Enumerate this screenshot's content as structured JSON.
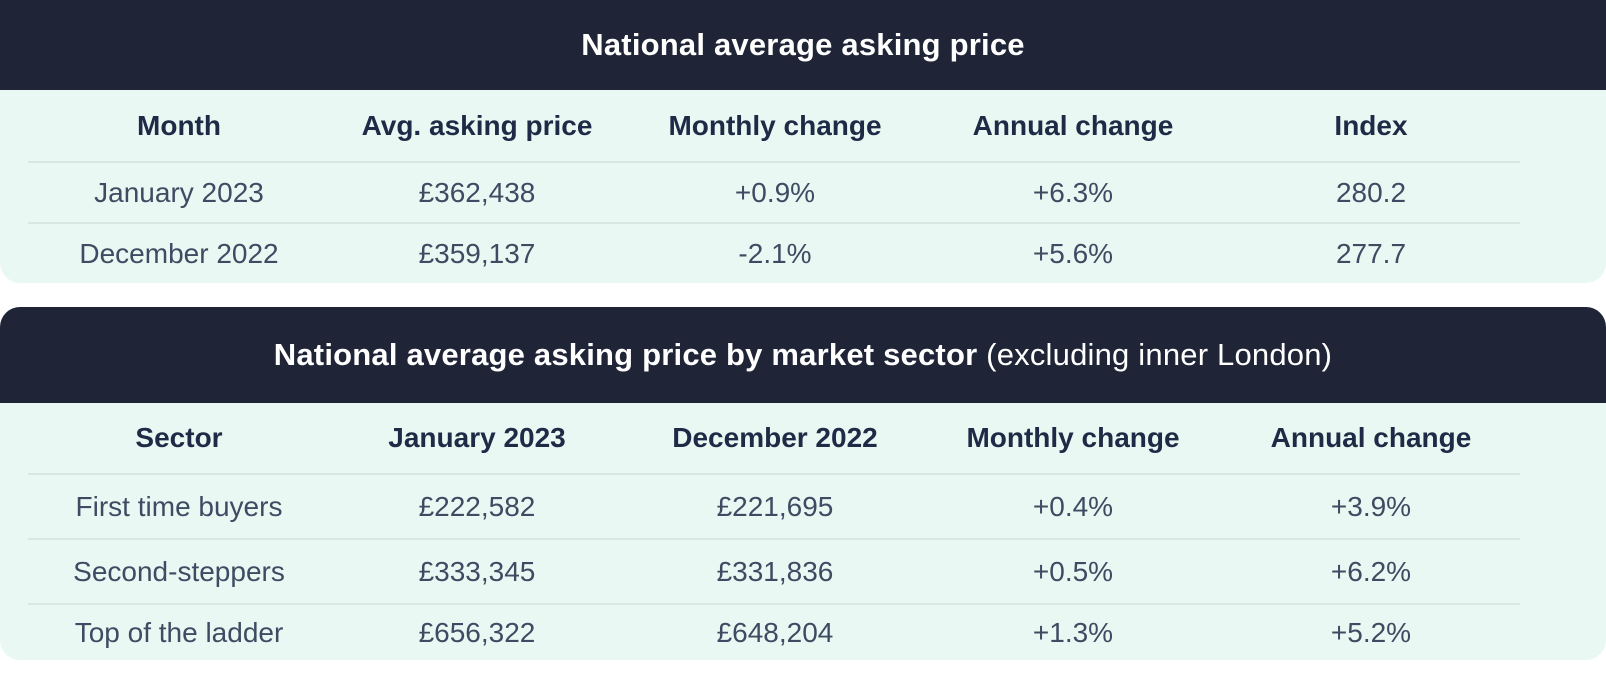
{
  "colors": {
    "title_bar_bg": "#1F2437",
    "table_body_bg": "#EAF8F3",
    "divider": "#D9E6E2",
    "title_text": "#FFFFFF",
    "header_text": "#1F2B46",
    "body_text": "#3E4B62"
  },
  "chart_data": [
    {
      "type": "table",
      "title": "National average asking price",
      "columns": [
        "Month",
        "Avg. asking price",
        "Monthly change",
        "Annual change",
        "Index"
      ],
      "rows": [
        [
          "January 2023",
          "£362,438",
          "+0.9%",
          "+6.3%",
          "280.2"
        ],
        [
          "December 2022",
          "£359,137",
          "-2.1%",
          "+5.6%",
          "277.7"
        ]
      ]
    },
    {
      "type": "table",
      "title": "National average asking price by market sector (excluding inner London)",
      "title_bold": "National average asking price by market sector",
      "title_normal": " (excluding inner London)",
      "columns": [
        "Sector",
        "January 2023",
        "December 2022",
        "Monthly change",
        "Annual change"
      ],
      "rows": [
        [
          "First time buyers",
          "£222,582",
          "£221,695",
          "+0.4%",
          "+3.9%"
        ],
        [
          "Second-steppers",
          "£333,345",
          "£331,836",
          "+0.5%",
          "+6.2%"
        ],
        [
          "Top of the ladder",
          "£656,322",
          "£648,204",
          "+1.3%",
          "+5.2%"
        ]
      ]
    }
  ]
}
